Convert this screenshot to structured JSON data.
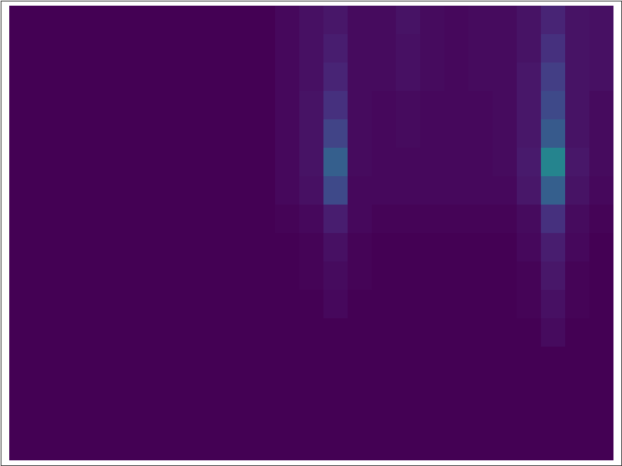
{
  "chart_data": {
    "type": "heatmap",
    "color": "viridis",
    "tick_labels": false,
    "zlim": [
      0,
      1
    ],
    "cells": [
      [
        0,
        0,
        0,
        0,
        0,
        0,
        0,
        0,
        0,
        0,
        0,
        0.02,
        0.04,
        0.06,
        0.03,
        0.03,
        0.05,
        0.03,
        0.02,
        0.03,
        0.03,
        0.05,
        0.1,
        0.05,
        0.04
      ],
      [
        0,
        0,
        0,
        0,
        0,
        0,
        0,
        0,
        0,
        0,
        0,
        0.02,
        0.04,
        0.08,
        0.03,
        0.03,
        0.04,
        0.03,
        0.02,
        0.03,
        0.03,
        0.05,
        0.14,
        0.05,
        0.04
      ],
      [
        0,
        0,
        0,
        0,
        0,
        0,
        0,
        0,
        0,
        0,
        0,
        0.02,
        0.04,
        0.1,
        0.03,
        0.03,
        0.04,
        0.03,
        0.02,
        0.03,
        0.03,
        0.06,
        0.18,
        0.05,
        0.04
      ],
      [
        0,
        0,
        0,
        0,
        0,
        0,
        0,
        0,
        0,
        0,
        0,
        0.02,
        0.05,
        0.14,
        0.03,
        0.02,
        0.03,
        0.02,
        0.02,
        0.02,
        0.03,
        0.06,
        0.22,
        0.05,
        0.03
      ],
      [
        0,
        0,
        0,
        0,
        0,
        0,
        0,
        0,
        0,
        0,
        0,
        0.02,
        0.05,
        0.2,
        0.03,
        0.02,
        0.03,
        0.02,
        0.02,
        0.02,
        0.03,
        0.06,
        0.28,
        0.05,
        0.03
      ],
      [
        0,
        0,
        0,
        0,
        0,
        0,
        0,
        0,
        0,
        0,
        0,
        0.02,
        0.05,
        0.3,
        0.03,
        0.02,
        0.02,
        0.02,
        0.02,
        0.02,
        0.03,
        0.07,
        0.45,
        0.06,
        0.03
      ],
      [
        0,
        0,
        0,
        0,
        0,
        0,
        0,
        0,
        0,
        0,
        0,
        0.02,
        0.04,
        0.22,
        0.02,
        0.02,
        0.02,
        0.02,
        0.02,
        0.02,
        0.02,
        0.06,
        0.3,
        0.05,
        0.02
      ],
      [
        0,
        0,
        0,
        0,
        0,
        0,
        0,
        0,
        0,
        0,
        0,
        0.01,
        0.02,
        0.08,
        0.02,
        0.01,
        0.01,
        0.01,
        0.01,
        0.01,
        0.01,
        0.03,
        0.14,
        0.03,
        0.01
      ],
      [
        0,
        0,
        0,
        0,
        0,
        0,
        0,
        0,
        0,
        0,
        0,
        0,
        0.01,
        0.04,
        0.01,
        0,
        0,
        0,
        0,
        0,
        0,
        0.02,
        0.08,
        0.02,
        0
      ],
      [
        0,
        0,
        0,
        0,
        0,
        0,
        0,
        0,
        0,
        0,
        0,
        0,
        0.01,
        0.03,
        0.01,
        0,
        0,
        0,
        0,
        0,
        0,
        0.01,
        0.06,
        0.01,
        0
      ],
      [
        0,
        0,
        0,
        0,
        0,
        0,
        0,
        0,
        0,
        0,
        0,
        0,
        0,
        0.02,
        0,
        0,
        0,
        0,
        0,
        0,
        0,
        0.01,
        0.04,
        0.01,
        0
      ],
      [
        0,
        0,
        0,
        0,
        0,
        0,
        0,
        0,
        0,
        0,
        0,
        0,
        0,
        0,
        0,
        0,
        0,
        0,
        0,
        0,
        0,
        0,
        0.03,
        0,
        0
      ],
      [
        0,
        0,
        0,
        0,
        0,
        0,
        0,
        0,
        0,
        0,
        0,
        0,
        0,
        0,
        0,
        0,
        0,
        0,
        0,
        0,
        0,
        0,
        0,
        0,
        0
      ],
      [
        0,
        0,
        0,
        0,
        0,
        0,
        0,
        0,
        0,
        0,
        0,
        0,
        0,
        0,
        0,
        0,
        0,
        0,
        0,
        0,
        0,
        0,
        0,
        0,
        0
      ],
      [
        0,
        0,
        0,
        0,
        0,
        0,
        0,
        0,
        0,
        0,
        0,
        0,
        0,
        0,
        0,
        0,
        0,
        0,
        0,
        0,
        0,
        0,
        0,
        0,
        0
      ],
      [
        0,
        0,
        0,
        0,
        0,
        0,
        0,
        0,
        0,
        0,
        0,
        0,
        0,
        0,
        0,
        0,
        0,
        0,
        0,
        0,
        0,
        0,
        0,
        0,
        0
      ]
    ]
  }
}
